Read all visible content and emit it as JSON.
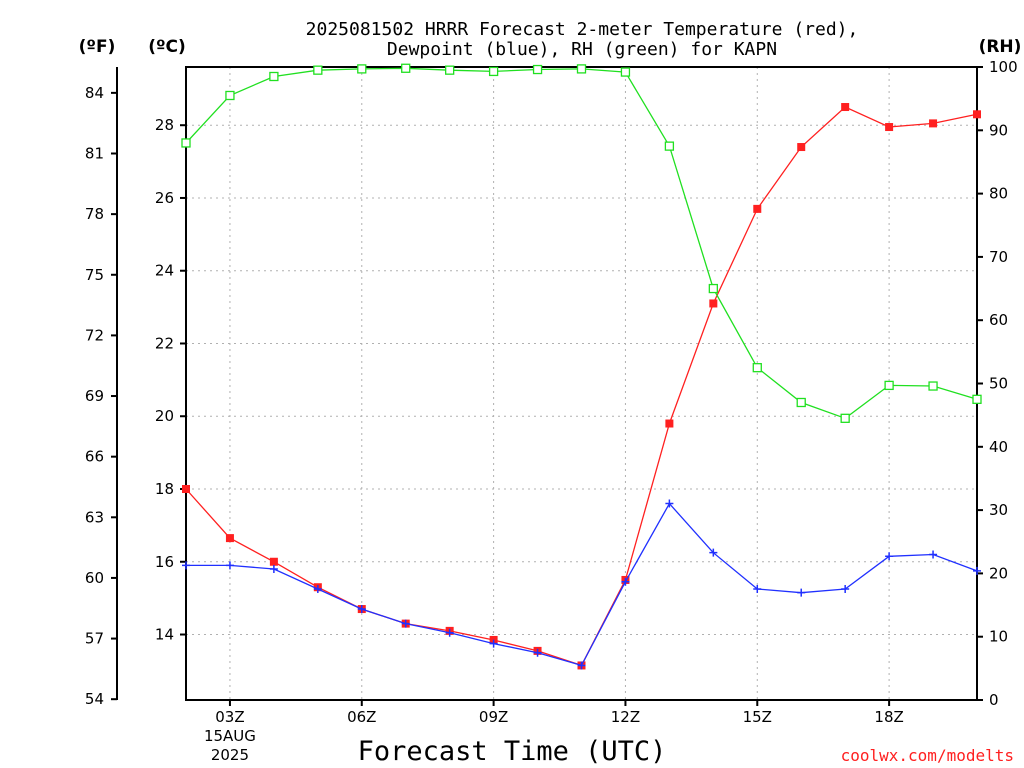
{
  "chart_data": {
    "type": "line",
    "title_line1": "2025081502 HRRR Forecast 2-meter Temperature (red),",
    "title_line2": "Dewpoint (blue), RH (green) for KAPN",
    "xlabel": "Forecast Time (UTC)",
    "credit": "coolwx.com/modelts",
    "unit_f": "(ºF)",
    "unit_c": "(ºC)",
    "unit_rh": "(RH)",
    "grid": true,
    "x_hours_utc": [
      2,
      3,
      4,
      5,
      6,
      7,
      8,
      9,
      10,
      11,
      12,
      13,
      14,
      15,
      16,
      17,
      18,
      19,
      20
    ],
    "xlim": [
      2,
      20
    ],
    "x_ticks": [
      {
        "hour": 3,
        "label": "03Z",
        "date_line1": "15AUG",
        "date_line2": "2025"
      },
      {
        "hour": 6,
        "label": "06Z"
      },
      {
        "hour": 9,
        "label": "09Z"
      },
      {
        "hour": 12,
        "label": "12Z"
      },
      {
        "hour": 15,
        "label": "15Z"
      },
      {
        "hour": 18,
        "label": "18Z"
      }
    ],
    "y_celsius": {
      "lim": [
        12.2,
        29.6
      ],
      "ticks": [
        14,
        16,
        18,
        20,
        22,
        24,
        26,
        28
      ]
    },
    "y_fahrenheit": {
      "ticks": [
        54,
        57,
        60,
        63,
        66,
        69,
        72,
        75,
        78,
        81,
        84
      ]
    },
    "y_rh": {
      "lim": [
        0,
        100
      ],
      "ticks": [
        0,
        10,
        20,
        30,
        40,
        50,
        60,
        70,
        80,
        90,
        100
      ]
    },
    "series": [
      {
        "key": "temperature",
        "axis": "celsius",
        "color": "#ff2020",
        "marker": "filled-square",
        "values": [
          18.0,
          16.65,
          16.0,
          15.3,
          14.7,
          14.3,
          14.1,
          13.85,
          13.55,
          13.15,
          15.5,
          19.8,
          23.1,
          25.7,
          27.4,
          28.5,
          27.95,
          28.05,
          28.3
        ]
      },
      {
        "key": "dewpoint",
        "axis": "celsius",
        "color": "#2030ff",
        "marker": "plus",
        "values": [
          15.9,
          15.9,
          15.8,
          15.25,
          14.7,
          14.3,
          14.05,
          13.75,
          13.5,
          13.15,
          15.45,
          17.6,
          16.25,
          15.25,
          15.15,
          15.25,
          16.15,
          16.2,
          15.75
        ]
      },
      {
        "key": "rh",
        "axis": "rh",
        "color": "#20e020",
        "marker": "open-square",
        "values": [
          88,
          95.5,
          98.5,
          99.5,
          99.7,
          99.8,
          99.5,
          99.3,
          99.6,
          99.7,
          99.2,
          87.5,
          65,
          52.5,
          47,
          44.5,
          49.7,
          49.6,
          47.5
        ]
      }
    ]
  }
}
